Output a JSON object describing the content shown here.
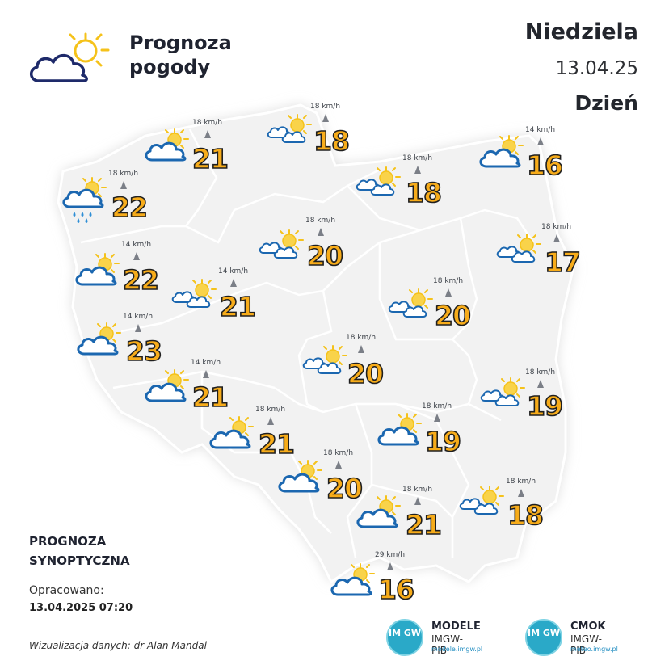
{
  "header": {
    "title_line1": "Prognoza",
    "title_line2": "pogody",
    "day_name": "Niedziela",
    "date": "13.04.25",
    "period": "Dzień"
  },
  "footer": {
    "forecast_type_line1": "PROGNOZA",
    "forecast_type_line2": "SYNOPTYCZNA",
    "prepared_label": "Opracowano:",
    "prepared_time": "13.04.2025 07:20",
    "credit": "Wizualizacja danych: dr Alan Mandal"
  },
  "orgs": [
    {
      "badge": "IM GW",
      "name": "MODELE",
      "sub": "IMGW-PIB",
      "url": "modele.imgw.pl"
    },
    {
      "badge": "IM GW",
      "name": "CMOK",
      "sub": "IMGW-PIB",
      "url": "meteo.imgw.pl"
    }
  ],
  "colors": {
    "temp_fill": "#f7ac1a",
    "temp_stroke": "#1f1f1f",
    "map_fill": "#f3f3f3",
    "map_border": "#ffffff",
    "cloud_stroke": "#1b67b0",
    "sun": "#f5c21a"
  },
  "stations": [
    {
      "id": "n-coast-west",
      "temp": "21",
      "wind": "18 km/h",
      "icon": "partly-cloudy-icon"
    },
    {
      "id": "gdansk",
      "temp": "18",
      "wind": "18 km/h",
      "icon": "sun-two-clouds-icon"
    },
    {
      "id": "szczecin",
      "temp": "22",
      "wind": "18 km/h",
      "icon": "rain-shower-icon"
    },
    {
      "id": "olsztyn",
      "temp": "18",
      "wind": "18 km/h",
      "icon": "sun-two-clouds-icon"
    },
    {
      "id": "suwalki",
      "temp": "16",
      "wind": "14 km/h",
      "icon": "partly-cloudy-icon"
    },
    {
      "id": "bydgoszcz",
      "temp": "20",
      "wind": "18 km/h",
      "icon": "sun-two-clouds-icon"
    },
    {
      "id": "gorzow",
      "temp": "22",
      "wind": "14 km/h",
      "icon": "partly-cloudy-icon"
    },
    {
      "id": "bialystok",
      "temp": "17",
      "wind": "18 km/h",
      "icon": "sun-two-clouds-icon"
    },
    {
      "id": "poznan",
      "temp": "21",
      "wind": "14 km/h",
      "icon": "sun-two-clouds-icon"
    },
    {
      "id": "warszawa",
      "temp": "20",
      "wind": "18 km/h",
      "icon": "sun-two-clouds-icon"
    },
    {
      "id": "zielona-gora",
      "temp": "23",
      "wind": "14 km/h",
      "icon": "partly-cloudy-icon"
    },
    {
      "id": "lodz",
      "temp": "20",
      "wind": "18 km/h",
      "icon": "sun-two-clouds-icon"
    },
    {
      "id": "legnica",
      "temp": "21",
      "wind": "14 km/h",
      "icon": "partly-cloudy-icon"
    },
    {
      "id": "lublin",
      "temp": "19",
      "wind": "18 km/h",
      "icon": "sun-two-clouds-icon"
    },
    {
      "id": "wroclaw",
      "temp": "21",
      "wind": "18 km/h",
      "icon": "partly-cloudy-icon"
    },
    {
      "id": "kielce",
      "temp": "19",
      "wind": "18 km/h",
      "icon": "partly-cloudy-icon"
    },
    {
      "id": "opole",
      "temp": "20",
      "wind": "18 km/h",
      "icon": "partly-cloudy-icon"
    },
    {
      "id": "rzeszow",
      "temp": "18",
      "wind": "18 km/h",
      "icon": "sun-two-clouds-icon"
    },
    {
      "id": "krakow",
      "temp": "21",
      "wind": "18 km/h",
      "icon": "partly-cloudy-icon"
    },
    {
      "id": "zakopane",
      "temp": "16",
      "wind": "29 km/h",
      "icon": "partly-cloudy-icon"
    }
  ]
}
